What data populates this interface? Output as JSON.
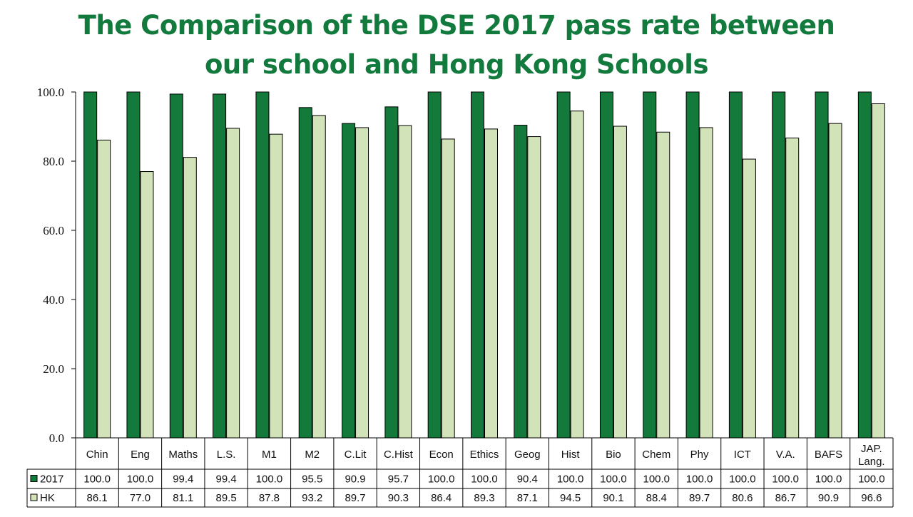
{
  "chart_data": {
    "type": "bar",
    "title_lines": [
      "The Comparison of the DSE 2017 pass rate between",
      "our school and Hong Kong Schools"
    ],
    "categories": [
      "Chin",
      "Eng",
      "Maths",
      "L.S.",
      "M1",
      "M2",
      "C.Lit",
      "C.Hist",
      "Econ",
      "Ethics",
      "Geog",
      "Hist",
      "Bio",
      "Chem",
      "Phy",
      "ICT",
      "V.A.",
      "BAFS",
      "JAP.\nLang."
    ],
    "series": [
      {
        "name": "2017",
        "color": "#147a3b",
        "values": [
          100.0,
          100.0,
          99.4,
          99.4,
          100.0,
          95.5,
          90.9,
          95.7,
          100.0,
          100.0,
          90.4,
          100.0,
          100.0,
          100.0,
          100.0,
          100.0,
          100.0,
          100.0,
          100.0
        ],
        "labels": [
          "100.0",
          "100.0",
          "99.4",
          "99.4",
          "100.0",
          "95.5",
          "90.9",
          "95.7",
          "100.0",
          "100.0",
          "90.4",
          "100.0",
          "100.0",
          "100.0",
          "100.0",
          "100.0",
          "100.0",
          "100.0",
          "100.0"
        ]
      },
      {
        "name": "HK",
        "color": "#d3e3b9",
        "values": [
          86.1,
          77.0,
          81.1,
          89.5,
          87.8,
          93.2,
          89.7,
          90.3,
          86.4,
          89.3,
          87.1,
          94.5,
          90.1,
          88.4,
          89.7,
          80.6,
          86.7,
          90.9,
          96.6
        ],
        "labels": [
          "86.1",
          "77.0",
          "81.1",
          "89.5",
          "87.8",
          "93.2",
          "89.7",
          "90.3",
          "86.4",
          "89.3",
          "87.1",
          "94.5",
          "90.1",
          "88.4",
          "89.7",
          "80.6",
          "86.7",
          "90.9",
          "96.6"
        ]
      }
    ],
    "ylim": [
      0,
      100
    ],
    "yticks": [
      "0.0",
      "20.0",
      "40.0",
      "60.0",
      "80.0",
      "100.0"
    ],
    "ytick_values": [
      0,
      20,
      40,
      60,
      80,
      100
    ],
    "grid": false,
    "legend": "data-table-left"
  }
}
